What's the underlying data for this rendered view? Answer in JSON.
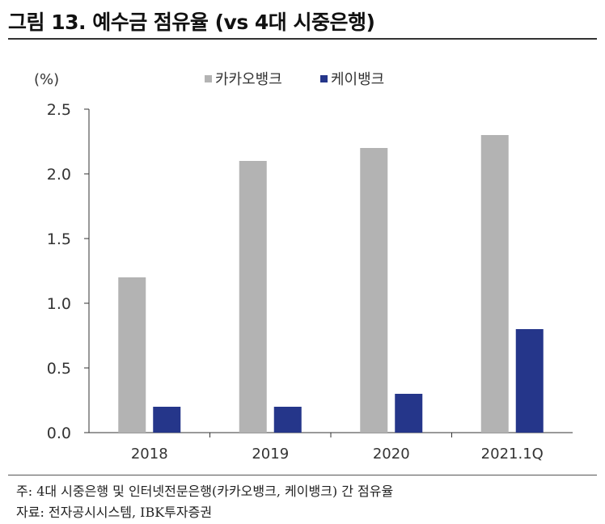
{
  "figure": {
    "title": "그림 13. 예수금 점유율 (vs 4대 시중은행)"
  },
  "chart_data": {
    "type": "bar",
    "title": "",
    "xlabel": "",
    "ylabel": "",
    "unit": "(%)",
    "categories": [
      "2018",
      "2019",
      "2020",
      "2021.1Q"
    ],
    "series": [
      {
        "name": "카카오뱅크",
        "values": [
          1.2,
          2.1,
          2.2,
          2.3
        ],
        "color": "#b3b3b3"
      },
      {
        "name": "케이뱅크",
        "values": [
          0.2,
          0.2,
          0.3,
          0.8
        ],
        "color": "#25368a"
      }
    ],
    "ylim": [
      0,
      2.5
    ],
    "yticks": [
      "0.0",
      "0.5",
      "1.0",
      "1.5",
      "2.0",
      "2.5"
    ],
    "grid": false,
    "legend": "top-center"
  },
  "notes": {
    "note": "주: 4대 시중은행 및 인터넷전문은행(카카오뱅크, 케이뱅크) 간 점유율",
    "source": "자료: 전자공시시스템, IBK투자증권"
  }
}
